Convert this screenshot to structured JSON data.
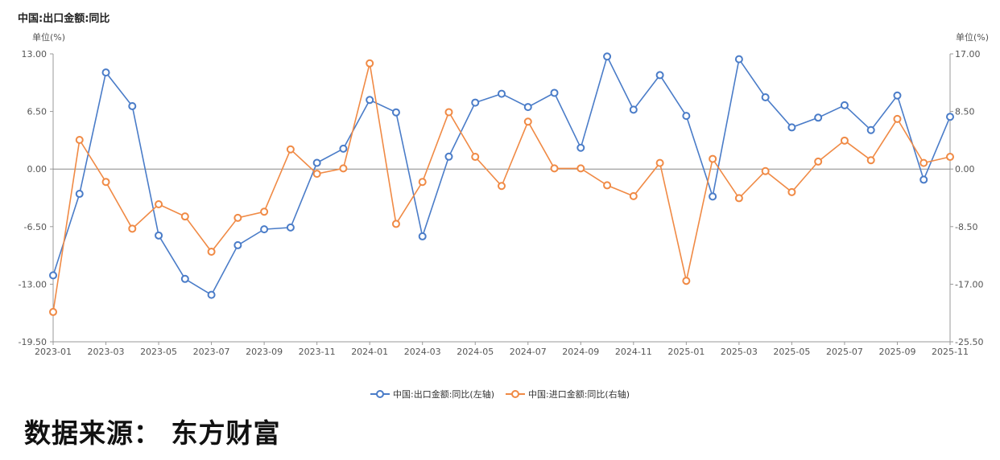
{
  "header": {
    "title": "中国:出口金额:同比",
    "unit_left": "单位(%)",
    "unit_right": "单位(%)"
  },
  "source": {
    "text": "数据来源： 东方财富"
  },
  "colors": {
    "export": "#4a7cc8",
    "import": "#f08a45",
    "axis": "#999999",
    "zero_line": "#888888"
  },
  "chart_data": {
    "type": "line",
    "x": [
      "2023-01",
      "2023-02",
      "2023-03",
      "2023-04",
      "2023-05",
      "2023-06",
      "2023-07",
      "2023-08",
      "2023-09",
      "2023-10",
      "2023-11",
      "2023-12",
      "2024-01",
      "2024-02",
      "2024-03",
      "2024-04",
      "2024-05",
      "2024-06",
      "2024-07",
      "2024-08",
      "2024-09",
      "2024-10",
      "2024-11",
      "2024-12",
      "2025-01",
      "2025-02",
      "2025-03",
      "2025-04",
      "2025-05",
      "2025-06",
      "2025-07",
      "2025-08",
      "2025-09",
      "2025-10",
      "2025-11"
    ],
    "x_tick_labels": [
      "2023-01",
      "2023-03",
      "2023-05",
      "2023-07",
      "2023-09",
      "2023-11",
      "2024-01",
      "2024-03",
      "2024-05",
      "2024-07",
      "2024-09",
      "2024-11",
      "2025-01",
      "2025-03",
      "2025-05",
      "2025-07",
      "2025-09",
      "2025-11"
    ],
    "y_left": {
      "lim": [
        -19.5,
        13.0
      ],
      "ticks": [
        "13.00",
        "6.50",
        "0.00",
        "-6.50",
        "-13.00",
        "-19.50"
      ],
      "tick_values": [
        13.0,
        6.5,
        0.0,
        -6.5,
        -13.0,
        -19.5
      ]
    },
    "y_right": {
      "lim": [
        -25.5,
        17.0
      ],
      "ticks": [
        "17.00",
        "8.50",
        "0.00",
        "-8.50",
        "-17.00",
        "-25.50"
      ],
      "tick_values": [
        17.0,
        8.5,
        0.0,
        -8.5,
        -17.0,
        -25.5
      ]
    },
    "series": [
      {
        "name": "中国:出口金额:同比(左轴)",
        "axis": "left",
        "values": [
          -12.0,
          -2.8,
          10.9,
          7.1,
          -7.5,
          -12.4,
          -14.2,
          -8.6,
          -6.8,
          -6.6,
          0.7,
          2.3,
          7.8,
          6.4,
          -7.6,
          1.4,
          7.5,
          8.5,
          7.0,
          8.6,
          2.4,
          12.7,
          6.7,
          10.6,
          6.0,
          -3.1,
          12.4,
          8.1,
          4.7,
          5.8,
          7.2,
          4.4,
          8.3,
          -1.2,
          5.9
        ]
      },
      {
        "name": "中国:进口金额:同比(右轴)",
        "axis": "right",
        "values": [
          -21.1,
          4.3,
          -1.9,
          -8.8,
          -5.2,
          -7.0,
          -12.2,
          -7.2,
          -6.3,
          2.9,
          -0.7,
          0.1,
          15.6,
          -8.1,
          -1.9,
          8.4,
          1.8,
          -2.5,
          7.0,
          0.1,
          0.1,
          -2.4,
          -4.0,
          0.9,
          -16.5,
          1.5,
          -4.3,
          -0.3,
          -3.4,
          1.1,
          4.2,
          1.3,
          7.4,
          0.9,
          1.8
        ]
      }
    ],
    "legend_placement": "bottom-center",
    "grid": false
  }
}
